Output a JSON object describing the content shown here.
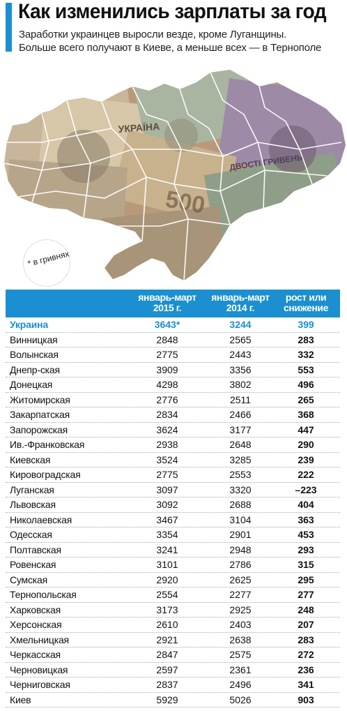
{
  "header": {
    "title": "Как изменились зарплаты за год",
    "subtitle_line1": "Заработки украинцев выросли везде, кроме Луганщины.",
    "subtitle_line2": "Больше всего получают в Киеве, а меньше всех — в Тернополе",
    "accent_color": "#1b8fd0"
  },
  "map": {
    "note": "* в гривнях",
    "banknote_texts": [
      "УКРАЇНА",
      "500",
      "ДВОСТІ ГРИВЕНЬ"
    ]
  },
  "table": {
    "headers": {
      "col1": "январь-март 2015 г.",
      "col2": "январь-март 2014 г.",
      "col3": "рост или снижение"
    },
    "total": {
      "name": "Украина",
      "v2015": "3643*",
      "v2014": "3244",
      "change": "399"
    },
    "rows": [
      {
        "name": "Винницкая",
        "v2015": "2848",
        "v2014": "2565",
        "change": "283"
      },
      {
        "name": "Волынская",
        "v2015": "2775",
        "v2014": "2443",
        "change": "332"
      },
      {
        "name": "Днепр-ская",
        "v2015": "3909",
        "v2014": "3356",
        "change": "553"
      },
      {
        "name": "Донецкая",
        "v2015": "4298",
        "v2014": "3802",
        "change": "496"
      },
      {
        "name": "Житомирская",
        "v2015": "2776",
        "v2014": "2511",
        "change": "265"
      },
      {
        "name": "Закарпатская",
        "v2015": "2834",
        "v2014": "2466",
        "change": "368"
      },
      {
        "name": "Запорожская",
        "v2015": "3624",
        "v2014": "3177",
        "change": "447"
      },
      {
        "name": "Ив.-Франковская",
        "v2015": "2938",
        "v2014": "2648",
        "change": "290"
      },
      {
        "name": "Киевская",
        "v2015": "3524",
        "v2014": "3285",
        "change": "239"
      },
      {
        "name": "Кировоградская",
        "v2015": "2775",
        "v2014": "2553",
        "change": "222"
      },
      {
        "name": "Луганская",
        "v2015": "3097",
        "v2014": "3320",
        "change": "–223"
      },
      {
        "name": "Львовская",
        "v2015": "3092",
        "v2014": "2688",
        "change": "404"
      },
      {
        "name": "Николаевская",
        "v2015": "3467",
        "v2014": "3104",
        "change": "363"
      },
      {
        "name": "Одесская",
        "v2015": "3354",
        "v2014": "2901",
        "change": "453"
      },
      {
        "name": "Полтавская",
        "v2015": "3241",
        "v2014": "2948",
        "change": "293"
      },
      {
        "name": "Ровенская",
        "v2015": "3101",
        "v2014": "2786",
        "change": "315"
      },
      {
        "name": "Сумская",
        "v2015": "2920",
        "v2014": "2625",
        "change": "295"
      },
      {
        "name": "Тернопольская",
        "v2015": "2554",
        "v2014": "2277",
        "change": "277"
      },
      {
        "name": "Харковская",
        "v2015": "3173",
        "v2014": "2925",
        "change": "248"
      },
      {
        "name": "Херсонская",
        "v2015": "2610",
        "v2014": "2403",
        "change": "207"
      },
      {
        "name": "Хмельницкая",
        "v2015": "2921",
        "v2014": "2638",
        "change": "283"
      },
      {
        "name": "Черкасская",
        "v2015": "2847",
        "v2014": "2575",
        "change": "272"
      },
      {
        "name": "Черновицкая",
        "v2015": "2597",
        "v2014": "2361",
        "change": "236"
      },
      {
        "name": "Черниговская",
        "v2015": "2837",
        "v2014": "2496",
        "change": "341"
      },
      {
        "name": "Киев",
        "v2015": "5929",
        "v2014": "5026",
        "change": "903"
      }
    ]
  }
}
